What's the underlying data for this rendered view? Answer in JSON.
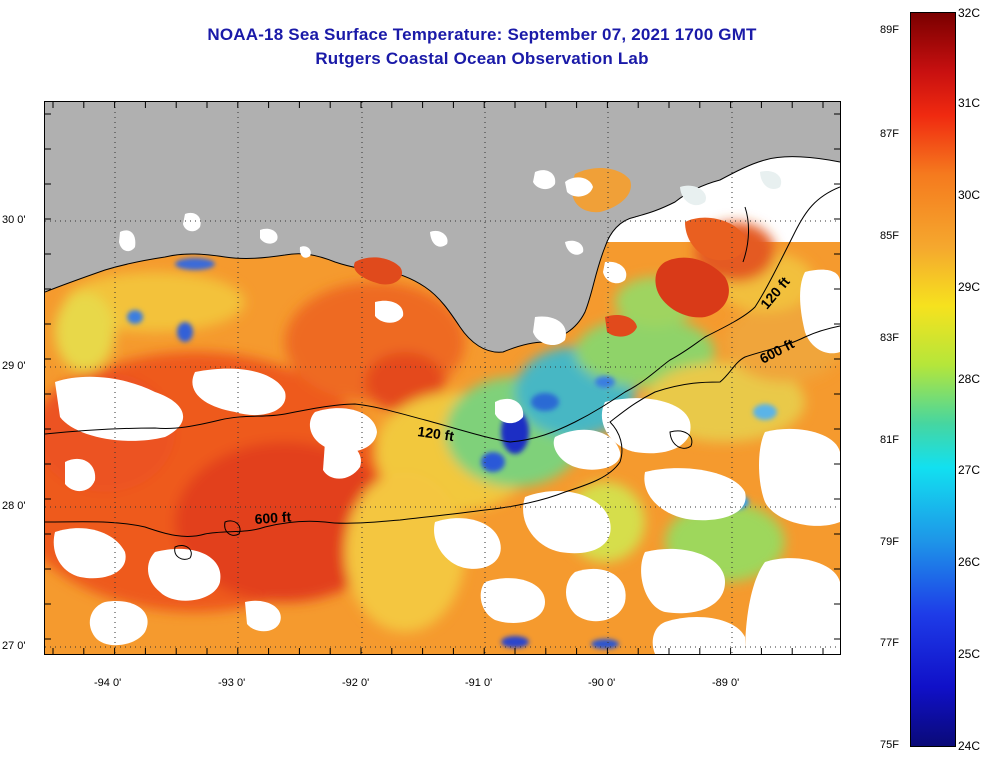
{
  "header": {
    "title_line1": "NOAA-18 Sea Surface Temperature:  September 07, 2021 1700 GMT",
    "title_line2": "Rutgers Coastal Ocean Observation Lab"
  },
  "map": {
    "lat_labels": [
      "30 0'",
      "29 0'",
      "28 0'",
      "27 0'"
    ],
    "lon_labels": [
      "-94 0'",
      "-93 0'",
      "-92 0'",
      "-91 0'",
      "-90 0'",
      "-89 0'"
    ],
    "isobath_labels": [
      "120 ft",
      "600 ft",
      "120 ft",
      "600 ft"
    ],
    "colors": {
      "land": "#b0b0b0",
      "cloud": "#ffffff"
    }
  },
  "colorbar": {
    "fahrenheit_labels": [
      "89F",
      "87F",
      "85F",
      "83F",
      "81F",
      "79F",
      "77F",
      "75F"
    ],
    "celsius_labels": [
      "32C",
      "31C",
      "30C",
      "29C",
      "28C",
      "27C",
      "26C",
      "25C",
      "24C"
    ]
  }
}
